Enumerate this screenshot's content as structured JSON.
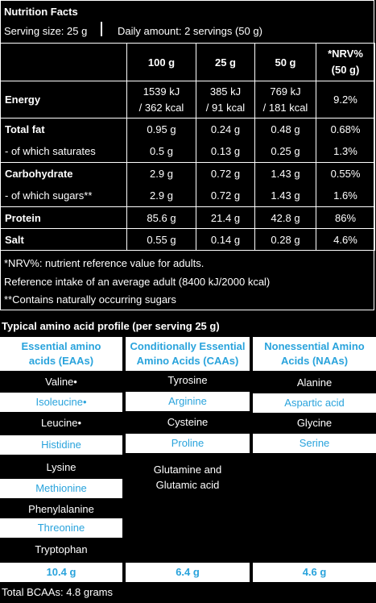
{
  "nutrition": {
    "title": "Nutrition Facts",
    "serving_size": "Serving size: 25 g",
    "daily_amount": "Daily amount: 2 servings (50 g)",
    "columns": [
      "",
      "100 g",
      "25 g",
      "50 g",
      "*NRV%",
      "(50 g)"
    ],
    "rows": [
      {
        "label": "Energy",
        "v100": "1539 kJ",
        "v100b": "/ 362 kcal",
        "v25": "385 kJ",
        "v25b": "/ 91 kcal",
        "v50": "769 kJ",
        "v50b": "/ 181 kcal",
        "nrv": "9.2%"
      },
      {
        "label": "Total fat",
        "v100": "0.95 g",
        "v25": "0.24 g",
        "v50": "0.48 g",
        "nrv": "0.68%"
      },
      {
        "label": "- of which saturates",
        "v100": "0.5 g",
        "v25": "0.13 g",
        "v50": "0.25 g",
        "nrv": "1.3%"
      },
      {
        "label": "Carbohydrate",
        "v100": "2.9 g",
        "v25": "0.72 g",
        "v50": "1.43 g",
        "nrv": "0.55%"
      },
      {
        "label": "- of which sugars**",
        "v100": "2.9 g",
        "v25": "0.72 g",
        "v50": "1.43 g",
        "nrv": "1.6%"
      },
      {
        "label": "Protein",
        "v100": "85.6 g",
        "v25": "21.4 g",
        "v50": "42.8 g",
        "nrv": "86%"
      },
      {
        "label": "Salt",
        "v100": "0.55 g",
        "v25": "0.14 g",
        "v50": "0.28 g",
        "nrv": "4.6%"
      }
    ],
    "footnotes": [
      "*NRV%: nutrient reference value for adults.",
      "Reference intake of an average adult (8400 kJ/2000 kcal)",
      "**Contains naturally occurring sugars"
    ]
  },
  "amino": {
    "title": "Typical amino acid profile (per serving 25 g)",
    "headers": [
      {
        "line1": "Essential amino",
        "line2": "acids (EAAs)"
      },
      {
        "line1": "Conditionally Essential",
        "line2": "Amino Acids (CAAs)"
      },
      {
        "line1": "Nonessential Amino",
        "line2": "Acids (NAAs)"
      }
    ],
    "eaa": [
      "Valine•",
      "Isoleucine•",
      "Leucine•",
      "Histidine",
      "Lysine",
      "Methionine",
      "Phenylalanine",
      "Threonine",
      "Tryptophan"
    ],
    "caa": [
      "Tyrosine",
      "Arginine",
      "Cysteine",
      "Proline"
    ],
    "caa_last_line1": "Glutamine and",
    "caa_last_line2": "Glutamic acid",
    "naa": [
      "Alanine",
      "Aspartic acid",
      "Glycine",
      "Serine"
    ],
    "totals": [
      "10.4 g",
      "6.4 g",
      "4.6 g"
    ],
    "bcaa_total": "Total BCAAs: 4.8 grams"
  },
  "colors": {
    "accent": "#29a3dc",
    "background": "#000000",
    "foreground": "#ffffff"
  }
}
